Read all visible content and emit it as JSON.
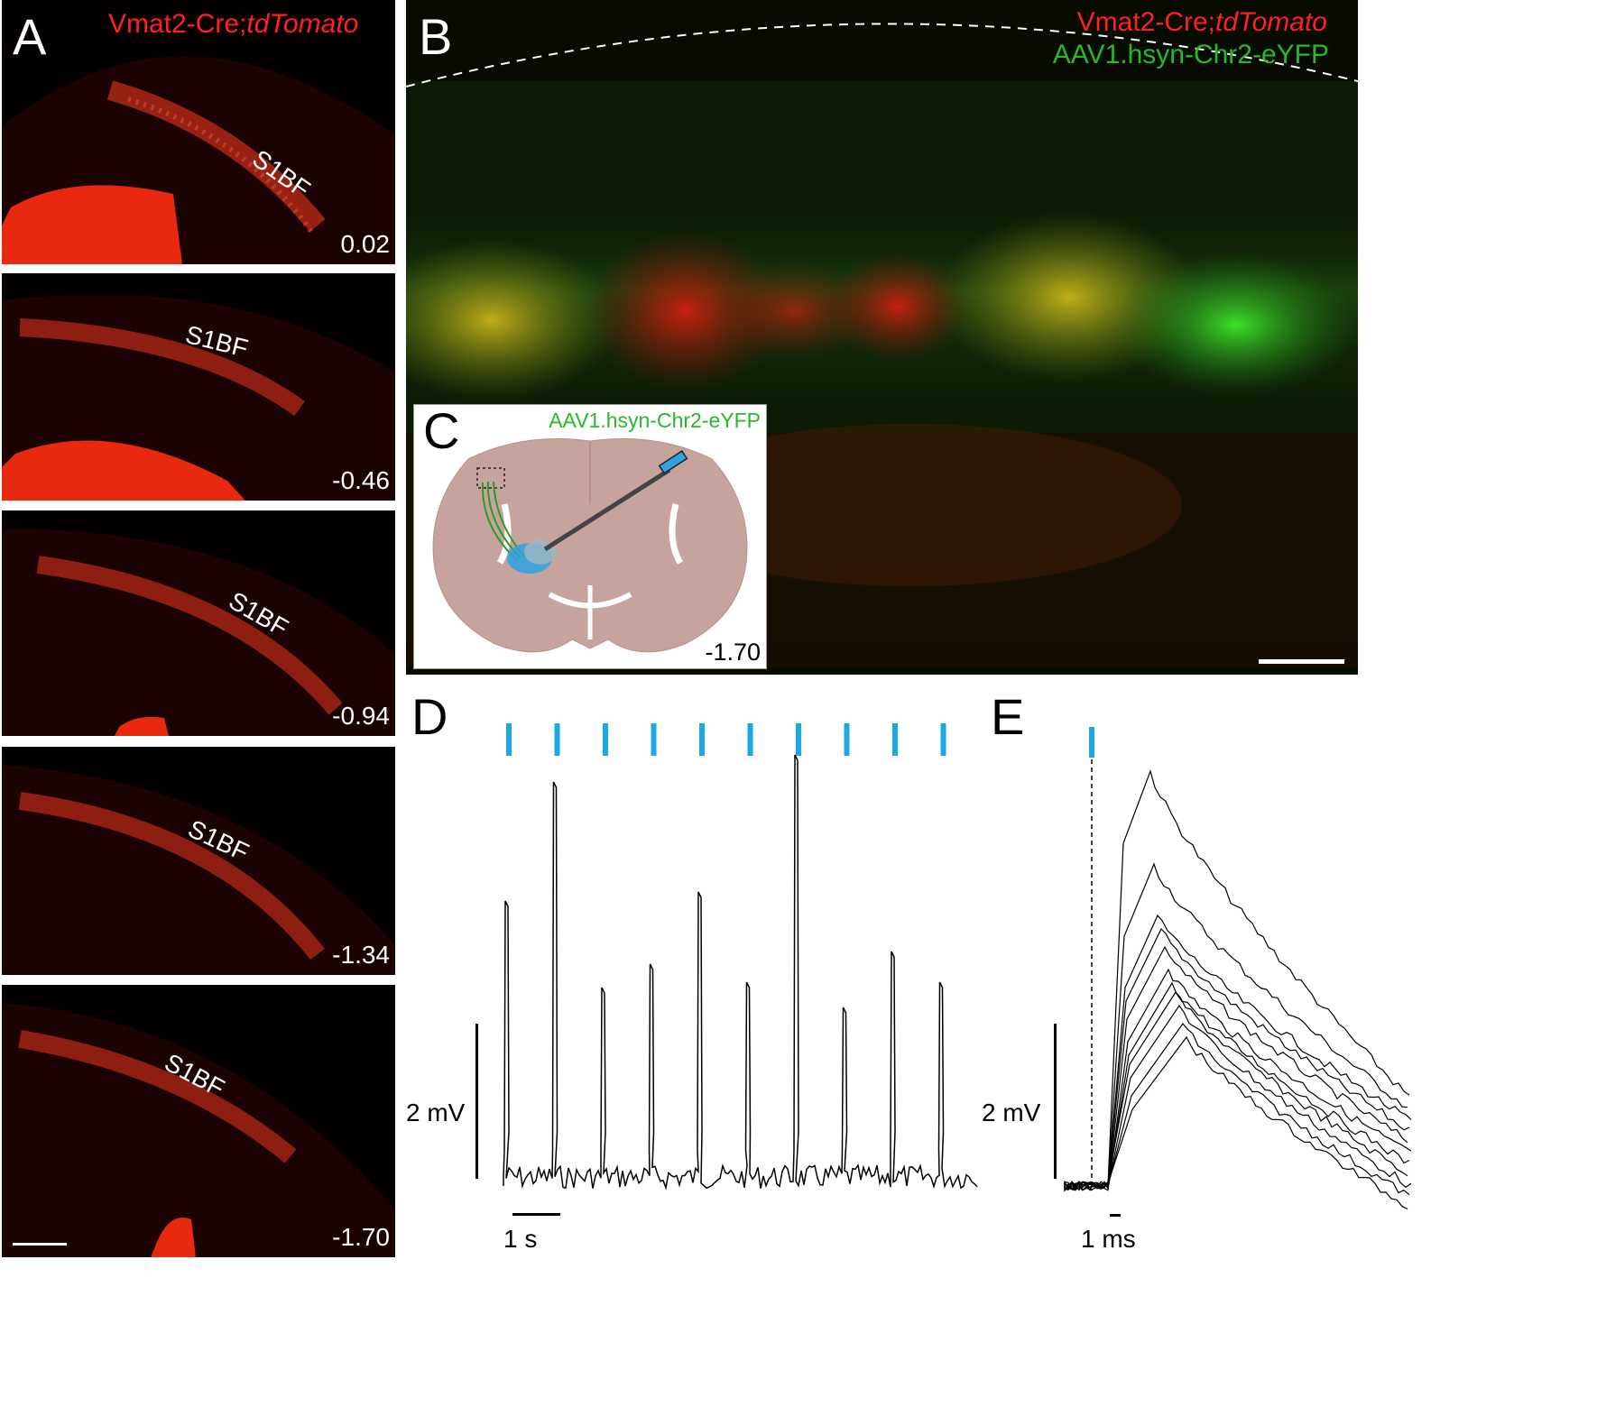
{
  "panels": {
    "A": {
      "letter": "A",
      "label_line": "Vmat2-Cre;",
      "label_ital": "tdTomato",
      "region": "S1BF",
      "slices": [
        {
          "coord": "0.02"
        },
        {
          "coord": "-0.46"
        },
        {
          "coord": "-0.94"
        },
        {
          "coord": "-1.34"
        },
        {
          "coord": "-1.70"
        }
      ]
    },
    "B": {
      "letter": "B",
      "label_red": "Vmat2-Cre;",
      "label_red_ital": "tdTomato",
      "label_green": "AAV1.hsyn-Chr2-eYFP"
    },
    "C": {
      "letter": "C",
      "label_green": "AAV1.hsyn-Chr2-eYFP",
      "coord": "-1.70"
    },
    "D": {
      "letter": "D",
      "scale_v": "2 mV",
      "scale_t": "1 s",
      "stim_count": 10
    },
    "E": {
      "letter": "E",
      "scale_v": "2 mV",
      "scale_t": "1 ms"
    }
  },
  "colors": {
    "red_channel": "#ff2a10",
    "green_channel": "#2fd02a",
    "stim_blue": "#1aa9e6",
    "brain_fill": "#c7a39d"
  }
}
